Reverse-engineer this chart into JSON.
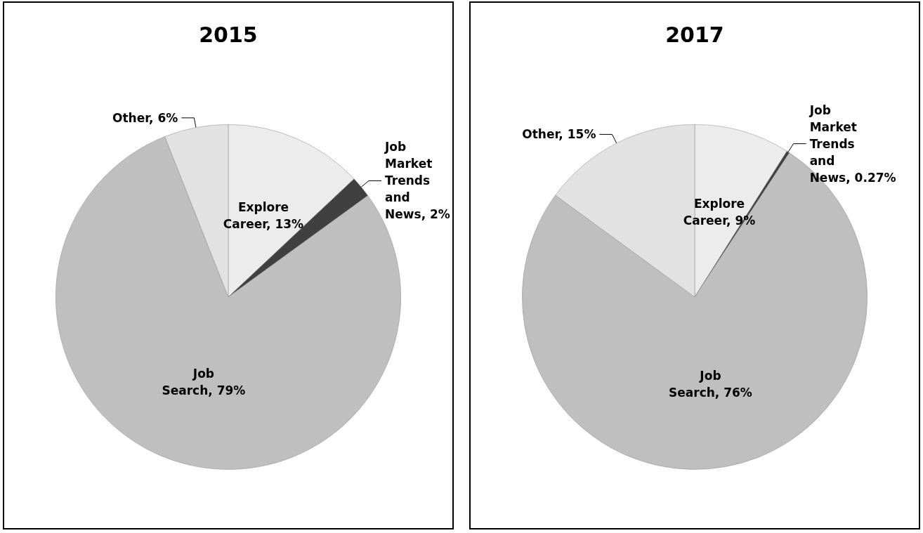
{
  "chart_data": [
    {
      "type": "pie",
      "title": "2015",
      "categories": [
        "Explore Career",
        "Job Market Trends and News",
        "Job Search",
        "Other"
      ],
      "values": [
        13,
        2,
        79,
        6
      ],
      "value_labels": [
        "13%",
        "2%",
        "79%",
        "6%"
      ],
      "colors": [
        "#ececec",
        "#404040",
        "#bfbfbf",
        "#e2e2e2"
      ],
      "legend": false
    },
    {
      "type": "pie",
      "title": "2017",
      "categories": [
        "Explore Career",
        "Job Market Trends and News",
        "Job Search",
        "Other"
      ],
      "values": [
        9,
        0.27,
        76,
        15
      ],
      "value_labels": [
        "9%",
        "0.27%",
        "76%",
        "15%"
      ],
      "colors": [
        "#ececec",
        "#404040",
        "#bfbfbf",
        "#e2e2e2"
      ],
      "legend": false
    }
  ]
}
